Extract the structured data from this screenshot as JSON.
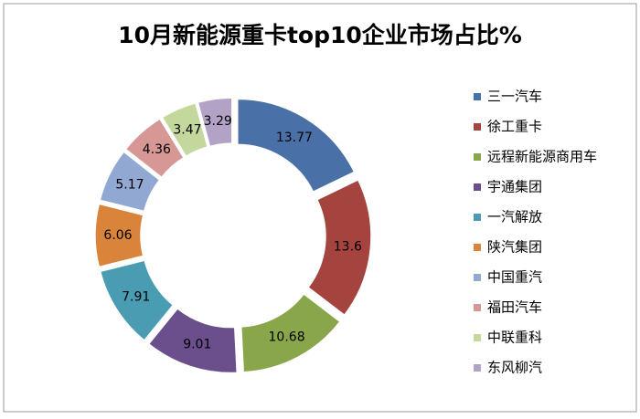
{
  "chart_data": {
    "type": "donut",
    "title": "10月新能源重卡top10企业市场占比%",
    "categories": [
      "三一汽车",
      "徐工重卡",
      "远程新能源商用车",
      "宇通集团",
      "一汽解放",
      "陕汽集团",
      "中国重汽",
      "福田汽车",
      "中联重科",
      "东风柳汽"
    ],
    "values": [
      13.77,
      13.6,
      10.68,
      9.01,
      7.91,
      6.06,
      5.17,
      4.36,
      3.47,
      3.29
    ],
    "colors": [
      "#4a70a8",
      "#a5433f",
      "#8aa64b",
      "#6a4f8c",
      "#4a9cb2",
      "#d9843a",
      "#91a9d2",
      "#d69795",
      "#c4d79c",
      "#b2a3c6"
    ],
    "legend": "right"
  }
}
